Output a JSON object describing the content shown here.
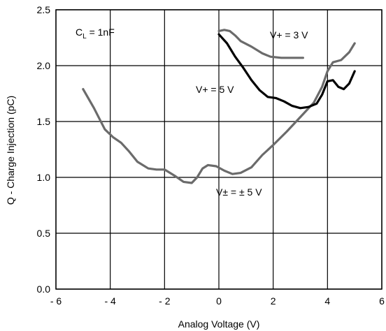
{
  "chart_data": {
    "type": "line",
    "title": "",
    "xlabel": "Analog Voltage (V)",
    "ylabel": "Q - Charge Injection (pC)",
    "xlim": [
      -6,
      6
    ],
    "ylim": [
      0,
      2.5
    ],
    "grid": true,
    "x_ticks": [
      -6,
      -4,
      -2,
      0,
      2,
      4,
      6
    ],
    "x_tick_labels": [
      "- 6",
      "- 4",
      "- 2",
      "0",
      "2",
      "4",
      "6"
    ],
    "y_ticks": [
      0,
      0.5,
      1.0,
      1.5,
      2.0,
      2.5
    ],
    "y_tick_labels": [
      "0.0",
      "0.5",
      "1.0",
      "1.5",
      "2.0",
      "2.5"
    ],
    "annotations": {
      "cl_main": "C",
      "cl_sub": "L",
      "cl_rest": " = 1nF",
      "v3": "V+ = 3 V",
      "v5": "V+ = 5 V",
      "vpm5": "V± = ± 5 V"
    },
    "series": [
      {
        "color": "#6b6b6b",
        "points": [
          [
            -5.0,
            1.79
          ],
          [
            -4.6,
            1.62
          ],
          [
            -4.2,
            1.43
          ],
          [
            -3.9,
            1.36
          ],
          [
            -3.6,
            1.31
          ],
          [
            -3.3,
            1.23
          ],
          [
            -3.0,
            1.14
          ],
          [
            -2.6,
            1.08
          ],
          [
            -2.3,
            1.07
          ],
          [
            -2.0,
            1.07
          ],
          [
            -1.6,
            1.01
          ],
          [
            -1.3,
            0.96
          ],
          [
            -1.0,
            0.95
          ],
          [
            -0.8,
            1.0
          ],
          [
            -0.6,
            1.08
          ],
          [
            -0.4,
            1.11
          ],
          [
            -0.1,
            1.1
          ],
          [
            0.2,
            1.06
          ],
          [
            0.5,
            1.03
          ],
          [
            0.8,
            1.04
          ],
          [
            1.2,
            1.09
          ],
          [
            1.6,
            1.2
          ],
          [
            2.0,
            1.29
          ],
          [
            2.5,
            1.41
          ],
          [
            3.0,
            1.54
          ],
          [
            3.5,
            1.67
          ],
          [
            3.8,
            1.81
          ],
          [
            4.0,
            1.95
          ],
          [
            4.2,
            2.03
          ],
          [
            4.5,
            2.05
          ],
          [
            4.8,
            2.12
          ],
          [
            5.0,
            2.2
          ]
        ]
      },
      {
        "color": "#000000",
        "points": [
          [
            0.0,
            2.28
          ],
          [
            0.3,
            2.2
          ],
          [
            0.6,
            2.08
          ],
          [
            0.9,
            1.98
          ],
          [
            1.2,
            1.87
          ],
          [
            1.5,
            1.78
          ],
          [
            1.8,
            1.72
          ],
          [
            2.1,
            1.71
          ],
          [
            2.4,
            1.68
          ],
          [
            2.7,
            1.64
          ],
          [
            3.0,
            1.62
          ],
          [
            3.3,
            1.63
          ],
          [
            3.6,
            1.66
          ],
          [
            3.8,
            1.74
          ],
          [
            4.0,
            1.86
          ],
          [
            4.2,
            1.87
          ],
          [
            4.4,
            1.81
          ],
          [
            4.6,
            1.79
          ],
          [
            4.8,
            1.84
          ],
          [
            5.0,
            1.95
          ]
        ]
      },
      {
        "color": "#6b6b6b",
        "points": [
          [
            0.0,
            2.31
          ],
          [
            0.2,
            2.32
          ],
          [
            0.4,
            2.31
          ],
          [
            0.6,
            2.27
          ],
          [
            0.8,
            2.22
          ],
          [
            1.2,
            2.17
          ],
          [
            1.6,
            2.11
          ],
          [
            1.9,
            2.08
          ],
          [
            2.3,
            2.07
          ],
          [
            2.8,
            2.07
          ],
          [
            3.1,
            2.07
          ]
        ]
      }
    ]
  }
}
